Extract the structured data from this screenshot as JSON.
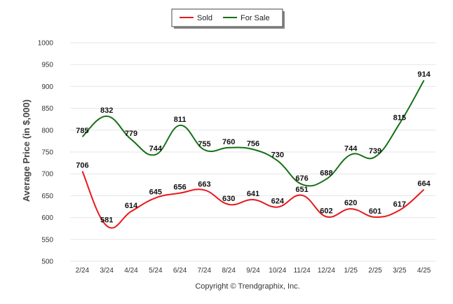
{
  "chart_data": {
    "type": "line",
    "categories": [
      "2/24",
      "3/24",
      "4/24",
      "5/24",
      "6/24",
      "7/24",
      "8/24",
      "9/24",
      "10/24",
      "11/24",
      "12/24",
      "1/25",
      "2/25",
      "3/25",
      "4/25"
    ],
    "series": [
      {
        "name": "Sold",
        "color": "#e8191d",
        "values": [
          706,
          581,
          614,
          645,
          656,
          663,
          630,
          641,
          624,
          651,
          602,
          620,
          601,
          617,
          664
        ]
      },
      {
        "name": "For Sale",
        "color": "#157015",
        "values": [
          785,
          832,
          779,
          744,
          811,
          755,
          760,
          756,
          730,
          676,
          688,
          744,
          739,
          815,
          914
        ]
      }
    ],
    "ylabel": "Average Price (in $,000)",
    "xlabel": "",
    "ylim": [
      500,
      1000
    ],
    "yticks": [
      500,
      550,
      600,
      650,
      700,
      750,
      800,
      850,
      900,
      950,
      1000
    ],
    "grid": true,
    "legend_position": "top-center",
    "smooth": true
  },
  "footer": {
    "copyright": "Copyright © Trendgraphix, Inc."
  }
}
